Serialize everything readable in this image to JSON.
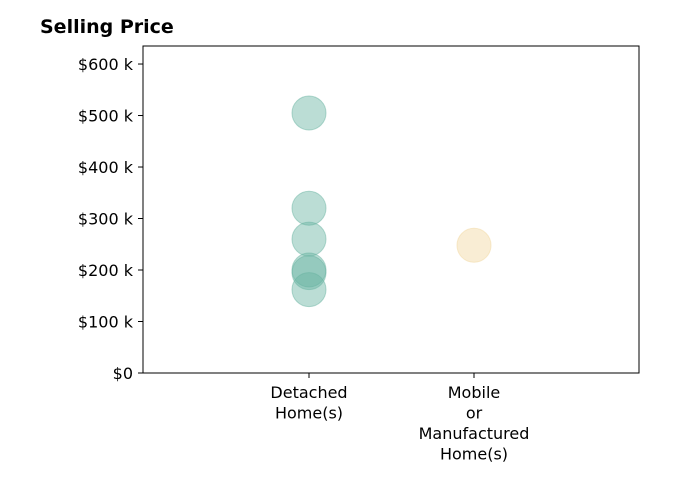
{
  "chart_data": {
    "type": "scatter",
    "title": "Selling Price",
    "xlabel": "",
    "ylabel": "",
    "categories": [
      [
        "Detached",
        "Home(s)"
      ],
      [
        "Mobile",
        "or",
        "Manufactured",
        "Home(s)"
      ]
    ],
    "y_ticks": [
      "$0",
      "$100 k",
      "$200 k",
      "$300 k",
      "$400 k",
      "$500 k",
      "$600 k"
    ],
    "y_tick_values": [
      0,
      100000,
      200000,
      300000,
      400000,
      500000,
      600000
    ],
    "ylim": [
      0,
      635000
    ],
    "grid": false,
    "points": [
      {
        "category": 0,
        "y": 505000,
        "color": "#69b3a2"
      },
      {
        "category": 0,
        "y": 320000,
        "color": "#69b3a2"
      },
      {
        "category": 0,
        "y": 260000,
        "color": "#69b3a2"
      },
      {
        "category": 0,
        "y": 200000,
        "color": "#69b3a2"
      },
      {
        "category": 0,
        "y": 195000,
        "color": "#69b3a2"
      },
      {
        "category": 0,
        "y": 162000,
        "color": "#69b3a2"
      },
      {
        "category": 1,
        "y": 248000,
        "color": "#f1d8a0"
      }
    ]
  }
}
